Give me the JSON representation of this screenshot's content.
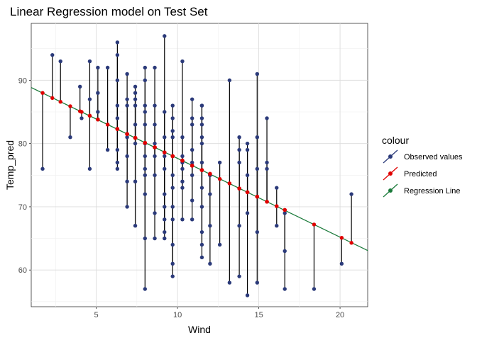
{
  "chart_data": {
    "type": "scatter",
    "title": "Linear Regression model on Test Set",
    "xlabel": "Wind",
    "ylabel": "Temp_pred",
    "xlim": [
      1.0,
      21.7
    ],
    "ylim": [
      54.2,
      99.0
    ],
    "xticks": [
      5,
      10,
      15,
      20
    ],
    "yticks": [
      60,
      70,
      80,
      90
    ],
    "grid": true,
    "legend_position": "right",
    "legend": {
      "title": "colour",
      "items": [
        {
          "label": "Observed values",
          "color": "#2b3a7a",
          "glyph": "point-line"
        },
        {
          "label": "Predicted",
          "color": "#e00000",
          "glyph": "point-line"
        },
        {
          "label": "Regression Line",
          "color": "#1a7a3a",
          "glyph": "point-line"
        }
      ]
    },
    "regression_line": {
      "intercept": 90.1,
      "slope": -1.245,
      "color": "#1a7a3a"
    },
    "colors": {
      "observed": "#2b3a7a",
      "predicted": "#e00000",
      "segment": "#000000"
    },
    "x": [
      1.7,
      2.3,
      2.8,
      3.4,
      4.0,
      4.1,
      4.6,
      4.6,
      4.6,
      5.1,
      5.1,
      5.1,
      5.7,
      5.7,
      6.3,
      6.3,
      6.3,
      6.3,
      6.3,
      6.3,
      6.3,
      6.3,
      6.9,
      6.9,
      6.9,
      6.9,
      6.9,
      6.9,
      6.9,
      7.4,
      7.4,
      7.4,
      7.4,
      7.4,
      7.4,
      7.4,
      7.4,
      8.0,
      8.0,
      8.0,
      8.0,
      8.0,
      8.0,
      8.0,
      8.0,
      8.0,
      8.0,
      8.0,
      8.0,
      8.6,
      8.6,
      8.6,
      8.6,
      8.6,
      8.6,
      8.6,
      8.6,
      9.2,
      9.2,
      9.2,
      9.2,
      9.2,
      9.2,
      9.2,
      9.2,
      9.2,
      9.2,
      9.7,
      9.7,
      9.7,
      9.7,
      9.7,
      9.7,
      9.7,
      9.7,
      9.7,
      9.7,
      9.7,
      9.7,
      10.3,
      10.3,
      10.3,
      10.3,
      10.3,
      10.3,
      10.3,
      10.3,
      10.9,
      10.9,
      10.9,
      10.9,
      10.9,
      10.9,
      10.9,
      10.9,
      11.5,
      11.5,
      11.5,
      11.5,
      11.5,
      11.5,
      11.5,
      11.5,
      11.5,
      11.5,
      11.5,
      11.5,
      12.0,
      12.0,
      12.0,
      12.0,
      12.0,
      12.6,
      12.6,
      13.2,
      13.2,
      13.8,
      13.8,
      13.8,
      13.8,
      13.8,
      14.3,
      14.3,
      14.3,
      14.3,
      14.3,
      14.9,
      14.9,
      14.9,
      14.9,
      14.9,
      15.5,
      15.5,
      15.5,
      16.1,
      16.1,
      16.6,
      16.6,
      16.6,
      18.4,
      20.1,
      20.7
    ],
    "observed": [
      76,
      94,
      93,
      81,
      89,
      84,
      93,
      87,
      76,
      92,
      88,
      85,
      92,
      79,
      96,
      94,
      90,
      86,
      84,
      79,
      77,
      76,
      91,
      87,
      86,
      81,
      78,
      74,
      70,
      89,
      88,
      87,
      86,
      83,
      80,
      74,
      67,
      90,
      86,
      85,
      83,
      80,
      78,
      76,
      75,
      72,
      65,
      57,
      92,
      86,
      83,
      80,
      78,
      75,
      69,
      65,
      92,
      85,
      81,
      78,
      76,
      72,
      70,
      68,
      66,
      65,
      97,
      86,
      84,
      81,
      78,
      75,
      73,
      70,
      68,
      64,
      61,
      59,
      82,
      81,
      78,
      77,
      76,
      74,
      73,
      68,
      93,
      84,
      83,
      79,
      77,
      75,
      71,
      68,
      87,
      86,
      84,
      83,
      81,
      80,
      77,
      73,
      70,
      66,
      64,
      62,
      86,
      75,
      72,
      67,
      61,
      75,
      64,
      77,
      58,
      90,
      81,
      79,
      77,
      67,
      59,
      80,
      79,
      75,
      69,
      56,
      91,
      81,
      76,
      66,
      58,
      84,
      77,
      76,
      67,
      73,
      69,
      63,
      57,
      57,
      61,
      72
    ],
    "predicted": [
      88.0,
      87.2,
      86.6,
      85.9,
      85.1,
      85.0,
      84.4,
      84.4,
      84.4,
      83.8,
      83.8,
      83.8,
      83.0,
      83.0,
      82.3,
      82.3,
      82.3,
      82.3,
      82.3,
      82.3,
      82.3,
      82.3,
      81.5,
      81.5,
      81.5,
      81.5,
      81.5,
      81.5,
      81.5,
      80.9,
      80.9,
      80.9,
      80.9,
      80.9,
      80.9,
      80.9,
      80.9,
      80.1,
      80.1,
      80.1,
      80.1,
      80.1,
      80.1,
      80.1,
      80.1,
      80.1,
      80.1,
      80.1,
      80.1,
      79.4,
      79.4,
      79.4,
      79.4,
      79.4,
      79.4,
      79.4,
      79.4,
      78.6,
      78.6,
      78.6,
      78.6,
      78.6,
      78.6,
      78.6,
      78.6,
      78.6,
      78.6,
      78.0,
      78.0,
      78.0,
      78.0,
      78.0,
      78.0,
      78.0,
      78.0,
      78.0,
      78.0,
      78.0,
      78.0,
      77.3,
      77.3,
      77.3,
      77.3,
      77.3,
      77.3,
      77.3,
      77.3,
      76.5,
      76.5,
      76.5,
      76.5,
      76.5,
      76.5,
      76.5,
      76.5,
      75.8,
      75.8,
      75.8,
      75.8,
      75.8,
      75.8,
      75.8,
      75.8,
      75.8,
      75.8,
      75.8,
      75.8,
      75.2,
      75.2,
      75.2,
      75.2,
      75.2,
      74.4,
      74.4,
      73.7,
      73.7,
      72.9,
      72.9,
      72.9,
      72.9,
      72.9,
      72.3,
      72.3,
      72.3,
      72.3,
      72.3,
      71.6,
      71.6,
      71.6,
      71.6,
      71.6,
      70.8,
      70.8,
      70.8,
      70.1,
      70.1,
      69.5,
      69.5,
      69.5,
      67.2,
      65.1,
      64.3
    ]
  }
}
